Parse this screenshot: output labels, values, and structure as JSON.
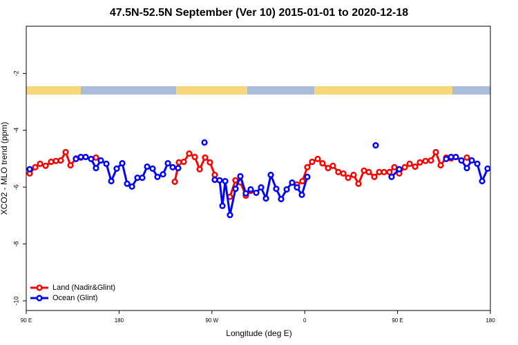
{
  "chart_data": {
    "type": "line",
    "title": "47.5N-52.5N September (Ver 10)   2015-01-01 to 2020-12-18",
    "x_label": "Longitude (deg E)",
    "y_label": "XCO2 - MLO trend (ppm)",
    "xlim": [
      90,
      540
    ],
    "ylim": [
      -10.34,
      -0.34
    ],
    "xticks": [
      {
        "value": 90,
        "label": "90 E"
      },
      180,
      {
        "value": 270,
        "label": "90 W"
      },
      {
        "value": 360,
        "label": "0"
      },
      {
        "value": 450,
        "label": "90 E"
      },
      {
        "value": 540,
        "label": "180"
      }
    ],
    "yticks": [
      -2,
      -4,
      -6,
      -8,
      -10
    ],
    "legend": "bottomleft",
    "series": [
      {
        "name": "Land (Nadir&Glint)",
        "color": "#ff0000",
        "x": [
          93.3,
          98.7,
          103.4,
          108.8,
          114.1,
          118.8,
          123.5,
          128.2,
          132.9,
          138.3,
          142.9,
          null,
          157.6,
          null,
          234,
          238,
          242.7,
          248,
          253.4,
          258.1,
          263.4,
          268.1,
          272.8,
          null,
          287.5,
          292.8,
          297.6,
          302.9,
          307.6,
          null,
          352.5,
          357.8,
          362.5,
          367.2,
          372.6,
          377.2,
          382.6,
          387.3,
          392.6,
          397.4,
          402.1,
          407.4,
          412.1,
          417.5,
          422.1,
          427.5,
          432.2,
          436.9,
          442.2,
          446.9,
          451.6,
          457,
          461.7,
          467,
          471.7,
          477.1,
          482.4,
          487.1,
          491.8,
          497.2,
          501.9,
          null,
          517.2
        ],
        "values": [
          -5.52,
          -5.3,
          -5.18,
          -5.25,
          -5.11,
          -5.08,
          -5.06,
          -4.77,
          -5.23,
          -4.99,
          -4.96,
          null,
          -4.96,
          null,
          -5.81,
          -5.13,
          -5.11,
          -4.82,
          -4.94,
          -5.37,
          -4.96,
          -5.13,
          -5.57,
          null,
          -6.34,
          -5.76,
          -5.83,
          -6.3,
          -6.13,
          null,
          -5.91,
          -5.79,
          -5.3,
          -5.11,
          -5.01,
          -5.16,
          -5.33,
          -5.25,
          -5.47,
          -5.52,
          -5.67,
          -5.57,
          -5.88,
          -5.42,
          -5.47,
          -5.64,
          -5.47,
          -5.47,
          -5.47,
          -5.3,
          -5.52,
          -5.3,
          -5.18,
          -5.28,
          -5.13,
          -5.08,
          -5.06,
          -4.77,
          -5.23,
          -4.96,
          -4.99,
          null,
          -4.96
        ]
      },
      {
        "name": "Ocean (Glint)",
        "color": "#0000ff",
        "x": [
          93.3,
          null,
          138.2,
          142.9,
          147.6,
          152.9,
          157.6,
          162.3,
          167.7,
          172.4,
          177.7,
          183.1,
          187.8,
          192.5,
          197.8,
          202.5,
          207.2,
          212.5,
          217.2,
          222.6,
          227.3,
          232.0,
          237.3,
          null,
          262.8,
          null,
          272.8,
          277.5,
          280.2,
          282.9,
          287.5,
          292.9,
          297.6,
          302.9,
          307.6,
          313.0,
          317.7,
          322.4,
          327.1,
          332.4,
          337.1,
          342.5,
          347.8,
          352.5,
          357.2,
          362.5,
          null,
          428.8,
          null,
          444.2,
          451.6,
          null,
          497.2,
          501.9,
          506.5,
          511.9,
          517.2,
          521.9,
          527.3,
          532.0,
          537.3
        ],
        "values": [
          -5.37,
          null,
          -5.01,
          -4.94,
          -4.94,
          -5.01,
          -5.33,
          -5.06,
          -5.18,
          -5.79,
          -5.35,
          -5.16,
          -5.88,
          -5.98,
          -5.67,
          -5.67,
          -5.28,
          -5.35,
          -5.64,
          -5.55,
          -5.16,
          -5.3,
          -5.33,
          null,
          -4.43,
          null,
          -5.74,
          -5.76,
          -6.66,
          -5.79,
          -6.98,
          -6.06,
          -5.62,
          -6.22,
          -6.08,
          -6.2,
          -6.01,
          -6.4,
          -5.57,
          -6.06,
          -6.42,
          -6.08,
          -5.84,
          -6.01,
          -6.27,
          -5.64,
          null,
          -4.53,
          null,
          -5.64,
          -5.37,
          null,
          -5.01,
          -4.94,
          -4.94,
          -5.06,
          -5.33,
          -5.06,
          -5.18,
          -5.79,
          -5.35
        ]
      }
    ]
  }
}
